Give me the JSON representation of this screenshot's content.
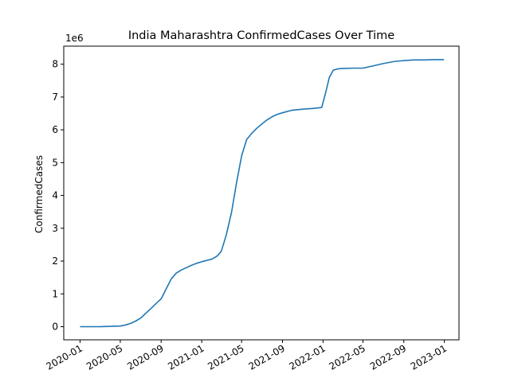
{
  "chart_data": {
    "type": "line",
    "title": "India Maharashtra ConfirmedCases Over Time",
    "xlabel": "",
    "ylabel": "ConfirmedCases",
    "y_offset_label": "1e6",
    "x_ticks": [
      "2020-01",
      "2020-05",
      "2020-09",
      "2021-01",
      "2021-05",
      "2021-09",
      "2022-01",
      "2022-05",
      "2022-09",
      "2023-01"
    ],
    "y_ticks": [
      "0",
      "1",
      "2",
      "3",
      "4",
      "5",
      "6",
      "7",
      "8"
    ],
    "xlim": [
      "2019-11-13",
      "2023-02-14"
    ],
    "ylim": [
      -0.4,
      8.55
    ],
    "grid": false,
    "series": [
      {
        "color": "#1f77b4",
        "points": [
          [
            "2020-01-01",
            0.0
          ],
          [
            "2020-02-01",
            0.0
          ],
          [
            "2020-03-01",
            0.0
          ],
          [
            "2020-04-01",
            0.01
          ],
          [
            "2020-05-01",
            0.02
          ],
          [
            "2020-05-16",
            0.05
          ],
          [
            "2020-06-01",
            0.1
          ],
          [
            "2020-06-16",
            0.17
          ],
          [
            "2020-07-01",
            0.26
          ],
          [
            "2020-07-16",
            0.4
          ],
          [
            "2020-08-01",
            0.55
          ],
          [
            "2020-08-16",
            0.7
          ],
          [
            "2020-09-01",
            0.85
          ],
          [
            "2020-09-16",
            1.15
          ],
          [
            "2020-10-01",
            1.45
          ],
          [
            "2020-10-16",
            1.63
          ],
          [
            "2020-11-01",
            1.73
          ],
          [
            "2020-11-16",
            1.8
          ],
          [
            "2020-12-01",
            1.87
          ],
          [
            "2020-12-16",
            1.93
          ],
          [
            "2021-01-01",
            1.98
          ],
          [
            "2021-01-16",
            2.02
          ],
          [
            "2021-02-01",
            2.06
          ],
          [
            "2021-02-16",
            2.15
          ],
          [
            "2021-03-01",
            2.3
          ],
          [
            "2021-03-16",
            2.8
          ],
          [
            "2021-04-01",
            3.5
          ],
          [
            "2021-04-16",
            4.4
          ],
          [
            "2021-05-01",
            5.2
          ],
          [
            "2021-05-16",
            5.7
          ],
          [
            "2021-06-01",
            5.9
          ],
          [
            "2021-06-16",
            6.05
          ],
          [
            "2021-07-01",
            6.18
          ],
          [
            "2021-07-16",
            6.3
          ],
          [
            "2021-08-01",
            6.4
          ],
          [
            "2021-08-16",
            6.47
          ],
          [
            "2021-09-01",
            6.52
          ],
          [
            "2021-10-01",
            6.6
          ],
          [
            "2021-11-01",
            6.63
          ],
          [
            "2021-12-01",
            6.65
          ],
          [
            "2021-12-28",
            6.68
          ],
          [
            "2022-01-08",
            7.1
          ],
          [
            "2022-01-20",
            7.6
          ],
          [
            "2022-02-01",
            7.82
          ],
          [
            "2022-02-16",
            7.86
          ],
          [
            "2022-03-01",
            7.87
          ],
          [
            "2022-04-01",
            7.88
          ],
          [
            "2022-05-01",
            7.88
          ],
          [
            "2022-06-01",
            7.95
          ],
          [
            "2022-07-01",
            8.02
          ],
          [
            "2022-08-01",
            8.08
          ],
          [
            "2022-09-01",
            8.11
          ],
          [
            "2022-10-01",
            8.13
          ],
          [
            "2022-11-01",
            8.13
          ],
          [
            "2022-12-01",
            8.14
          ],
          [
            "2022-12-31",
            8.14
          ]
        ]
      }
    ]
  }
}
